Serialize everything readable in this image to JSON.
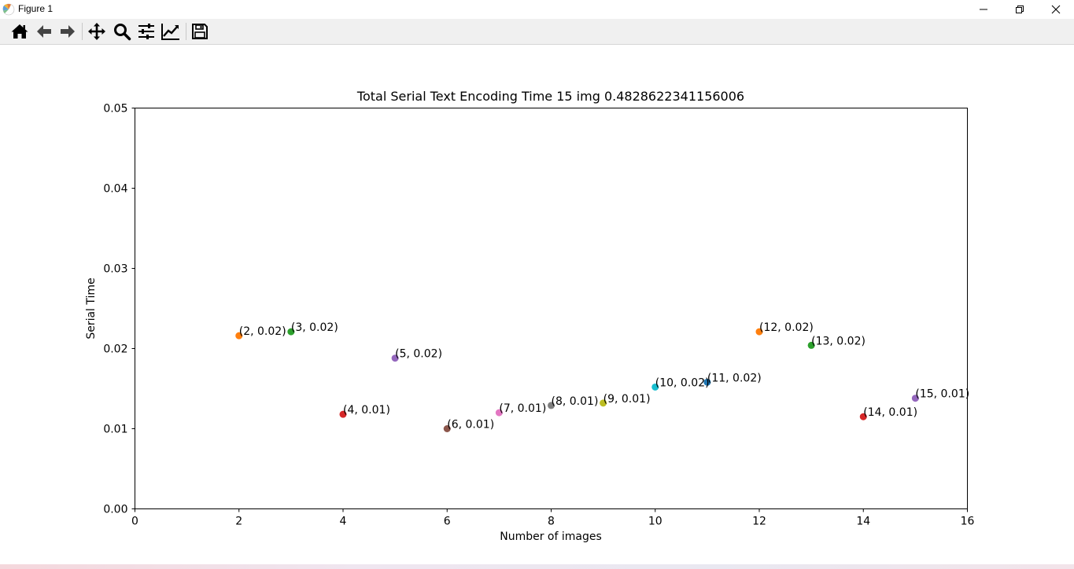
{
  "window": {
    "title": "Figure 1",
    "minimize_icon": "minimize-icon",
    "restore_icon": "restore-icon",
    "close_icon": "close-icon"
  },
  "toolbar": {
    "buttons": [
      {
        "name": "home",
        "icon": "home-icon"
      },
      {
        "name": "back",
        "icon": "arrow-left-icon"
      },
      {
        "name": "forward",
        "icon": "arrow-right-icon"
      },
      {
        "name": "pan",
        "icon": "move-icon"
      },
      {
        "name": "zoom",
        "icon": "magnifier-icon"
      },
      {
        "name": "configure-subplots",
        "icon": "sliders-icon"
      },
      {
        "name": "edit-axis",
        "icon": "line-chart-icon"
      },
      {
        "name": "save",
        "icon": "floppy-disk-icon"
      }
    ]
  },
  "chart_data": {
    "type": "scatter",
    "title": "Total Serial Text Encoding Time 15 img 0.4828622341156006",
    "xlabel": "Number of images",
    "ylabel": "Serial Time",
    "xlim": [
      0,
      16
    ],
    "ylim": [
      0,
      0.05
    ],
    "xticks": [
      "0",
      "2",
      "4",
      "6",
      "8",
      "10",
      "12",
      "14",
      "16"
    ],
    "xtick_values": [
      0,
      2,
      4,
      6,
      8,
      10,
      12,
      14,
      16
    ],
    "yticks": [
      "0.00",
      "0.01",
      "0.02",
      "0.03",
      "0.04",
      "0.05"
    ],
    "ytick_values": [
      0,
      0.01,
      0.02,
      0.03,
      0.04,
      0.05
    ],
    "grid": false,
    "points": [
      {
        "x": 2,
        "y": 0.0216,
        "label": "(2, 0.02)",
        "color": "#ff7f0e"
      },
      {
        "x": 3,
        "y": 0.0221,
        "label": "(3, 0.02)",
        "color": "#2ca02c"
      },
      {
        "x": 4,
        "y": 0.0118,
        "label": "(4, 0.01)",
        "color": "#d62728"
      },
      {
        "x": 5,
        "y": 0.0188,
        "label": "(5, 0.02)",
        "color": "#9467bd"
      },
      {
        "x": 6,
        "y": 0.01,
        "label": "(6, 0.01)",
        "color": "#8c564b"
      },
      {
        "x": 7,
        "y": 0.012,
        "label": "(7, 0.01)",
        "color": "#e377c2"
      },
      {
        "x": 8,
        "y": 0.0129,
        "label": "(8, 0.01)",
        "color": "#7f7f7f"
      },
      {
        "x": 9,
        "y": 0.0132,
        "label": "(9, 0.01)",
        "color": "#bcbd22"
      },
      {
        "x": 10,
        "y": 0.0152,
        "label": "(10, 0.02)",
        "color": "#17becf"
      },
      {
        "x": 11,
        "y": 0.0158,
        "label": "(11, 0.02)",
        "color": "#1f77b4"
      },
      {
        "x": 12,
        "y": 0.0221,
        "label": "(12, 0.02)",
        "color": "#ff7f0e"
      },
      {
        "x": 13,
        "y": 0.0204,
        "label": "(13, 0.02)",
        "color": "#2ca02c"
      },
      {
        "x": 14,
        "y": 0.0115,
        "label": "(14, 0.01)",
        "color": "#d62728"
      },
      {
        "x": 15,
        "y": 0.0138,
        "label": "(15, 0.01)",
        "color": "#9467bd"
      }
    ]
  }
}
